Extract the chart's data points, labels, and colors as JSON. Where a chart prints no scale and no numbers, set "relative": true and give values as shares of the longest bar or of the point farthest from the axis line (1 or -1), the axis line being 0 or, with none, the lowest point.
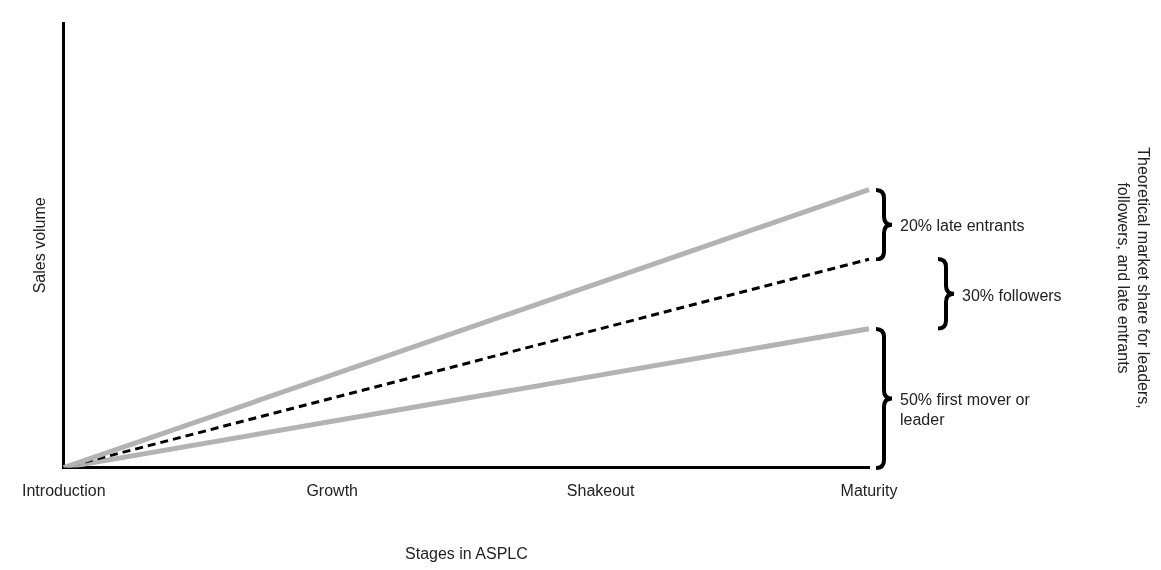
{
  "chart_data": {
    "type": "line",
    "relative": true,
    "xlabel": "Stages in ASPLC",
    "ylabel": "Sales volume",
    "categories": [
      "Introduction",
      "Growth",
      "Shakeout",
      "Maturity"
    ],
    "series": [
      {
        "color": "#b3b3b3",
        "values": [
          0,
          null,
          null,
          1
        ],
        "line_style": "solid"
      },
      {
        "color": "#000000",
        "values": [
          0,
          null,
          null,
          0.75
        ],
        "line_style": "dashed"
      },
      {
        "color": "#b3b3b3",
        "values": [
          0,
          null,
          null,
          0.5
        ],
        "line_style": "solid"
      }
    ],
    "annotations": [
      "20% late entrants",
      "30% followers",
      "50%   first mover or leader",
      "Theoretical market share for leaders, followers, and late entrants"
    ],
    "grid": false,
    "legend": false,
    "marker": "none"
  }
}
